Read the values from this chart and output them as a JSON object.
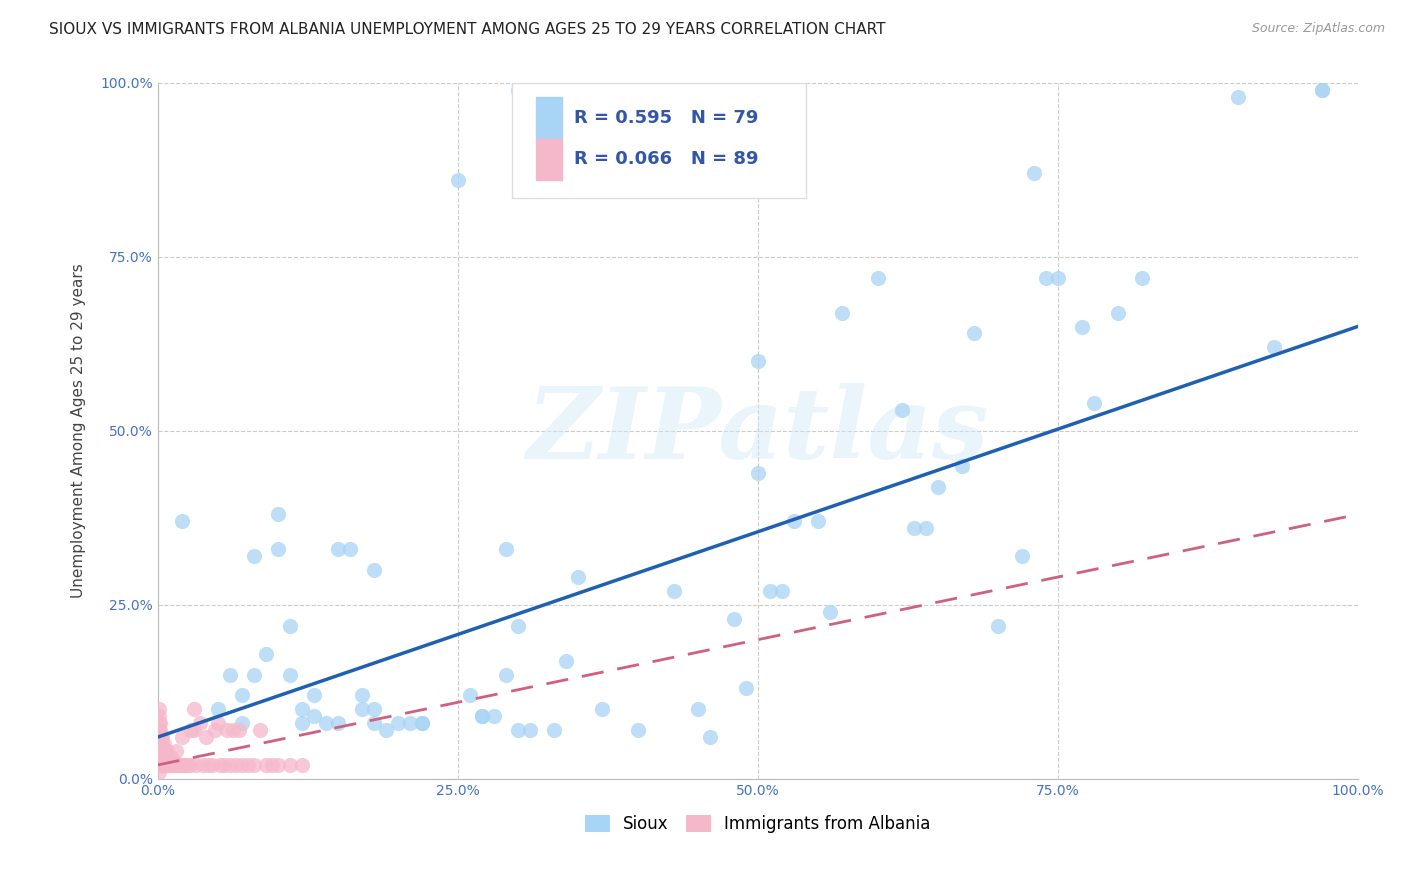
{
  "title": "SIOUX VS IMMIGRANTS FROM ALBANIA UNEMPLOYMENT AMONG AGES 25 TO 29 YEARS CORRELATION CHART",
  "source": "Source: ZipAtlas.com",
  "ylabel_label": "Unemployment Among Ages 25 to 29 years",
  "xlim": [
    0.0,
    1.0
  ],
  "ylim": [
    0.0,
    1.0
  ],
  "xticks": [
    0.0,
    0.25,
    0.5,
    0.75,
    1.0
  ],
  "yticks": [
    0.0,
    0.25,
    0.5,
    0.75,
    1.0
  ],
  "xticklabels": [
    "0.0%",
    "25.0%",
    "50.0%",
    "75.0%",
    "100.0%"
  ],
  "yticklabels": [
    "0.0%",
    "25.0%",
    "50.0%",
    "75.0%",
    "100.0%"
  ],
  "sioux_R": 0.595,
  "sioux_N": 79,
  "albania_R": 0.066,
  "albania_N": 89,
  "sioux_color": "#a8d4f5",
  "albania_color": "#f5b8cb",
  "sioux_line_color": "#2060b0",
  "albania_line_color": "#d06080",
  "watermark_text": "ZIPatlas",
  "sioux_scatter": [
    [
      0.02,
      0.37
    ],
    [
      0.05,
      0.1
    ],
    [
      0.06,
      0.15
    ],
    [
      0.07,
      0.08
    ],
    [
      0.07,
      0.12
    ],
    [
      0.08,
      0.15
    ],
    [
      0.08,
      0.32
    ],
    [
      0.09,
      0.18
    ],
    [
      0.1,
      0.33
    ],
    [
      0.1,
      0.38
    ],
    [
      0.11,
      0.22
    ],
    [
      0.11,
      0.15
    ],
    [
      0.12,
      0.08
    ],
    [
      0.12,
      0.1
    ],
    [
      0.13,
      0.09
    ],
    [
      0.13,
      0.12
    ],
    [
      0.14,
      0.08
    ],
    [
      0.15,
      0.08
    ],
    [
      0.15,
      0.33
    ],
    [
      0.16,
      0.33
    ],
    [
      0.17,
      0.1
    ],
    [
      0.17,
      0.12
    ],
    [
      0.18,
      0.3
    ],
    [
      0.18,
      0.08
    ],
    [
      0.18,
      0.1
    ],
    [
      0.19,
      0.07
    ],
    [
      0.2,
      0.08
    ],
    [
      0.21,
      0.08
    ],
    [
      0.22,
      0.08
    ],
    [
      0.22,
      0.08
    ],
    [
      0.25,
      0.86
    ],
    [
      0.26,
      0.12
    ],
    [
      0.27,
      0.09
    ],
    [
      0.27,
      0.09
    ],
    [
      0.28,
      0.09
    ],
    [
      0.29,
      0.33
    ],
    [
      0.29,
      0.15
    ],
    [
      0.3,
      0.22
    ],
    [
      0.3,
      0.07
    ],
    [
      0.31,
      0.07
    ],
    [
      0.33,
      0.07
    ],
    [
      0.34,
      0.17
    ],
    [
      0.35,
      0.29
    ],
    [
      0.37,
      0.1
    ],
    [
      0.4,
      0.07
    ],
    [
      0.43,
      0.27
    ],
    [
      0.45,
      0.1
    ],
    [
      0.46,
      0.06
    ],
    [
      0.48,
      0.23
    ],
    [
      0.49,
      0.13
    ],
    [
      0.5,
      0.44
    ],
    [
      0.5,
      0.6
    ],
    [
      0.51,
      0.27
    ],
    [
      0.52,
      0.27
    ],
    [
      0.53,
      0.37
    ],
    [
      0.55,
      0.37
    ],
    [
      0.56,
      0.24
    ],
    [
      0.57,
      0.67
    ],
    [
      0.6,
      0.72
    ],
    [
      0.62,
      0.53
    ],
    [
      0.63,
      0.36
    ],
    [
      0.64,
      0.36
    ],
    [
      0.65,
      0.42
    ],
    [
      0.67,
      0.45
    ],
    [
      0.68,
      0.64
    ],
    [
      0.7,
      0.22
    ],
    [
      0.72,
      0.32
    ],
    [
      0.73,
      0.87
    ],
    [
      0.74,
      0.72
    ],
    [
      0.75,
      0.72
    ],
    [
      0.77,
      0.65
    ],
    [
      0.78,
      0.54
    ],
    [
      0.8,
      0.67
    ],
    [
      0.82,
      0.72
    ],
    [
      0.9,
      0.98
    ],
    [
      0.93,
      0.62
    ],
    [
      0.97,
      0.99
    ],
    [
      0.97,
      0.99
    ],
    [
      0.3,
      0.99
    ],
    [
      0.34,
      0.99
    ]
  ],
  "albania_scatter": [
    [
      0.001,
      0.02
    ],
    [
      0.001,
      0.04
    ],
    [
      0.001,
      0.06
    ],
    [
      0.001,
      0.08
    ],
    [
      0.001,
      0.1
    ],
    [
      0.001,
      0.03
    ],
    [
      0.001,
      0.05
    ],
    [
      0.001,
      0.07
    ],
    [
      0.001,
      0.09
    ],
    [
      0.001,
      0.01
    ],
    [
      0.002,
      0.02
    ],
    [
      0.002,
      0.04
    ],
    [
      0.002,
      0.06
    ],
    [
      0.002,
      0.08
    ],
    [
      0.002,
      0.03
    ],
    [
      0.002,
      0.05
    ],
    [
      0.002,
      0.07
    ],
    [
      0.003,
      0.02
    ],
    [
      0.003,
      0.04
    ],
    [
      0.003,
      0.06
    ],
    [
      0.003,
      0.03
    ],
    [
      0.003,
      0.05
    ],
    [
      0.004,
      0.02
    ],
    [
      0.004,
      0.04
    ],
    [
      0.004,
      0.06
    ],
    [
      0.004,
      0.03
    ],
    [
      0.004,
      0.05
    ],
    [
      0.005,
      0.02
    ],
    [
      0.005,
      0.04
    ],
    [
      0.005,
      0.03
    ],
    [
      0.005,
      0.05
    ],
    [
      0.006,
      0.02
    ],
    [
      0.006,
      0.04
    ],
    [
      0.006,
      0.03
    ],
    [
      0.007,
      0.02
    ],
    [
      0.007,
      0.04
    ],
    [
      0.007,
      0.03
    ],
    [
      0.008,
      0.02
    ],
    [
      0.008,
      0.03
    ],
    [
      0.008,
      0.04
    ],
    [
      0.009,
      0.02
    ],
    [
      0.009,
      0.03
    ],
    [
      0.01,
      0.02
    ],
    [
      0.01,
      0.03
    ],
    [
      0.011,
      0.02
    ],
    [
      0.011,
      0.03
    ],
    [
      0.012,
      0.02
    ],
    [
      0.012,
      0.03
    ],
    [
      0.013,
      0.02
    ],
    [
      0.014,
      0.02
    ],
    [
      0.015,
      0.02
    ],
    [
      0.015,
      0.04
    ],
    [
      0.016,
      0.02
    ],
    [
      0.017,
      0.02
    ],
    [
      0.018,
      0.02
    ],
    [
      0.019,
      0.02
    ],
    [
      0.02,
      0.02
    ],
    [
      0.02,
      0.06
    ],
    [
      0.021,
      0.02
    ],
    [
      0.022,
      0.02
    ],
    [
      0.025,
      0.02
    ],
    [
      0.027,
      0.02
    ],
    [
      0.028,
      0.07
    ],
    [
      0.03,
      0.07
    ],
    [
      0.03,
      0.1
    ],
    [
      0.032,
      0.02
    ],
    [
      0.035,
      0.08
    ],
    [
      0.038,
      0.02
    ],
    [
      0.04,
      0.06
    ],
    [
      0.042,
      0.02
    ],
    [
      0.045,
      0.02
    ],
    [
      0.048,
      0.07
    ],
    [
      0.05,
      0.08
    ],
    [
      0.052,
      0.02
    ],
    [
      0.055,
      0.02
    ],
    [
      0.058,
      0.07
    ],
    [
      0.06,
      0.02
    ],
    [
      0.063,
      0.07
    ],
    [
      0.065,
      0.02
    ],
    [
      0.068,
      0.07
    ],
    [
      0.07,
      0.02
    ],
    [
      0.075,
      0.02
    ],
    [
      0.08,
      0.02
    ],
    [
      0.085,
      0.07
    ],
    [
      0.09,
      0.02
    ],
    [
      0.095,
      0.02
    ],
    [
      0.1,
      0.02
    ],
    [
      0.11,
      0.02
    ],
    [
      0.12,
      0.02
    ]
  ],
  "sioux_line_x": [
    0.0,
    1.0
  ],
  "sioux_line_y": [
    0.06,
    0.65
  ],
  "albania_line_x": [
    0.0,
    1.0
  ],
  "albania_line_y": [
    0.02,
    0.38
  ],
  "legend_labels": [
    "Sioux",
    "Immigrants from Albania"
  ],
  "grid_color": "#cccccc",
  "background_color": "#ffffff",
  "tick_color": "#4472c4",
  "axis_label_color": "#444444",
  "title_color": "#222222",
  "title_fontsize": 11,
  "ylabel_fontsize": 11,
  "tick_fontsize": 10,
  "legend_fontsize": 12,
  "scatter_size": 120,
  "scatter_alpha": 0.75
}
